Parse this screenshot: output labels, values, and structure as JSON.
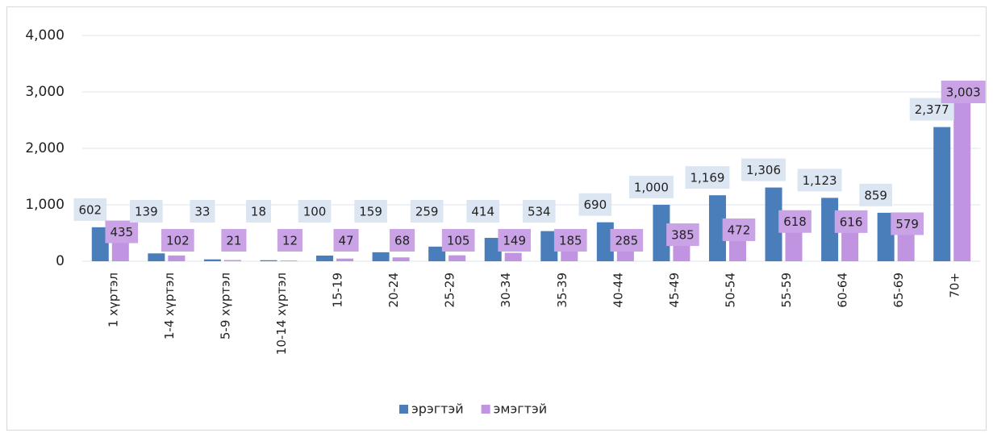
{
  "chart_data": {
    "type": "bar",
    "categories": [
      "1 хүртэл",
      "1-4 хүртэл",
      "5-9 хүртэл",
      "10-14 хүртэл",
      "15-19",
      "20-24",
      "25-29",
      "30-34",
      "35-39",
      "40-44",
      "45-49",
      "50-54",
      "55-59",
      "60-64",
      "65-69",
      "70+"
    ],
    "series": [
      {
        "name": "эрэгтэй",
        "color": "#4a7ebb",
        "label_color": "#dce6f2",
        "values": [
          602,
          139,
          33,
          18,
          100,
          159,
          259,
          414,
          534,
          690,
          1000,
          1169,
          1306,
          1123,
          859,
          2377
        ],
        "value_labels": [
          "602",
          "139",
          "33",
          "18",
          "100",
          "159",
          "259",
          "414",
          "534",
          "690",
          "1,000",
          "1,169",
          "1,306",
          "1,123",
          "859",
          "2,377"
        ]
      },
      {
        "name": "эмэгтэй",
        "color": "#c094e0",
        "label_color": "#c9a3e6",
        "values": [
          435,
          102,
          21,
          12,
          47,
          68,
          105,
          149,
          185,
          285,
          385,
          472,
          618,
          616,
          579,
          3003
        ],
        "value_labels": [
          "435",
          "102",
          "21",
          "12",
          "47",
          "68",
          "105",
          "149",
          "185",
          "285",
          "385",
          "472",
          "618",
          "616",
          "579",
          "3,003"
        ]
      }
    ],
    "ylim": [
      0,
      4000
    ],
    "yticks": [
      0,
      {
        "value": 1000,
        "label": "1,000"
      },
      {
        "value": 2000,
        "label": "2,000"
      },
      {
        "value": 3000,
        "label": "3,000"
      },
      {
        "value": 4000,
        "label": "4,000"
      }
    ],
    "grid": true,
    "legend": "bottom"
  }
}
